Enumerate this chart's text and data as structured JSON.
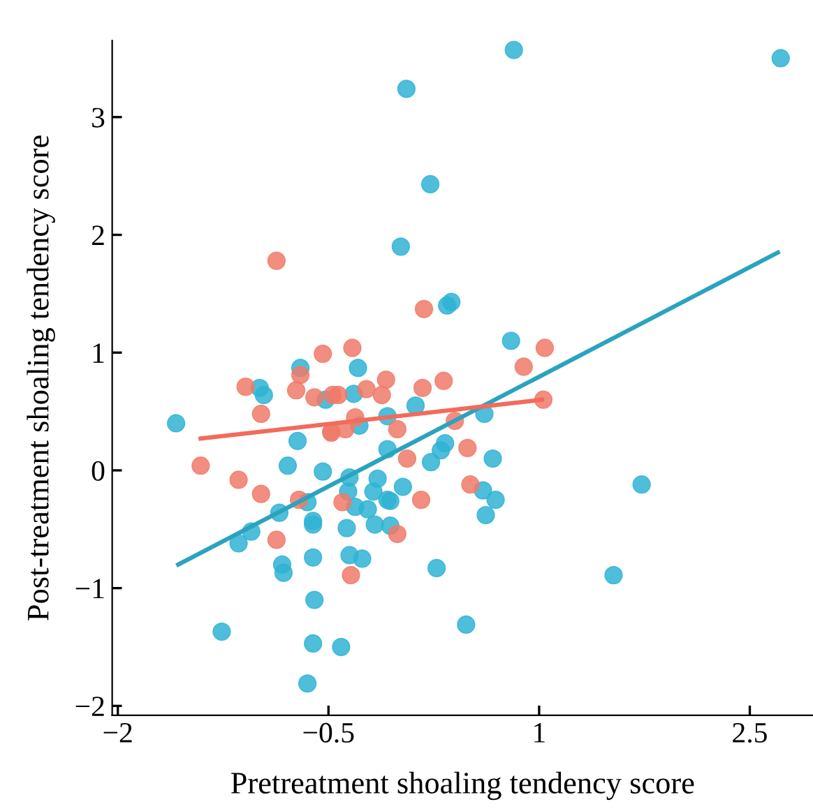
{
  "chart_data": {
    "type": "scatter",
    "xlabel": "Pretreatment shoaling tendency score",
    "ylabel": "Post-treatment shoaling tendency score",
    "xlim": [
      -2.04,
      2.95
    ],
    "ylim": [
      -2.08,
      3.65
    ],
    "xticks": [
      {
        "value": -2,
        "label": "−2"
      },
      {
        "value": -0.5,
        "label": "−0.5"
      },
      1,
      2.5
    ],
    "yticks": [
      {
        "value": -2,
        "label": "−2"
      },
      {
        "value": -1,
        "label": "−1"
      },
      0,
      1,
      2,
      3
    ],
    "grid": false,
    "series": [
      {
        "color": "#2fb3d3",
        "marker": "circle",
        "x": [
          -1.585,
          0.82,
          2.72,
          0.055,
          0.225,
          0.015,
          0.345,
          0.375,
          0.8,
          -0.7,
          -0.99,
          -0.96,
          -0.29,
          -0.32,
          -0.52,
          -0.28,
          -0.08,
          0.12,
          0.61,
          0.33,
          0.3,
          0.23,
          0.67,
          -0.72,
          -0.79,
          -0.54,
          -0.35,
          -0.15,
          -0.08,
          0.03,
          -0.18,
          -0.36,
          -0.08,
          -0.31,
          -0.22,
          0.6,
          0.69,
          -0.65,
          -0.85,
          0.62,
          -1.05,
          -1.14,
          -0.61,
          -0.61,
          -0.06,
          -0.17,
          -0.06,
          -0.37,
          -0.83,
          -0.82,
          -0.61,
          -0.35,
          -0.26,
          0.27,
          -0.6,
          -1.26,
          -0.61,
          -0.41,
          -0.65,
          0.48,
          1.53,
          1.73
        ],
        "values": [
          0.4,
          3.57,
          3.5,
          3.24,
          2.43,
          1.9,
          1.4,
          1.43,
          1.1,
          0.87,
          0.7,
          0.64,
          0.87,
          0.65,
          0.6,
          0.38,
          0.46,
          0.55,
          0.48,
          0.23,
          0.17,
          0.07,
          0.1,
          0.25,
          0.04,
          -0.01,
          -0.06,
          -0.07,
          0.18,
          -0.14,
          -0.18,
          -0.18,
          -0.25,
          -0.31,
          -0.33,
          -0.17,
          -0.25,
          -0.27,
          -0.36,
          -0.38,
          -0.52,
          -0.62,
          -0.43,
          -0.46,
          -0.26,
          -0.46,
          -0.47,
          -0.49,
          -0.8,
          -0.87,
          -0.74,
          -0.72,
          -0.75,
          -0.83,
          -1.1,
          -1.37,
          -1.47,
          -1.5,
          -1.81,
          -1.31,
          -0.89,
          -0.12
        ]
      },
      {
        "color": "#f07a68",
        "marker": "circle",
        "x": [
          -0.87,
          0.18,
          -0.54,
          -0.33,
          1.04,
          0.89,
          -0.7,
          -1.09,
          -0.73,
          -0.6,
          -0.47,
          -0.43,
          -0.23,
          -0.12,
          -0.09,
          0.17,
          0.32,
          1.03,
          -0.98,
          -0.48,
          -0.48,
          -0.38,
          -0.31,
          -0.01,
          0.4,
          0.49,
          0.06,
          -1.41,
          -1.14,
          -0.98,
          -0.71,
          -0.4,
          0.16,
          0.51,
          -0.87,
          -0.34,
          -0.01
        ],
        "values": [
          1.78,
          1.37,
          0.99,
          1.04,
          1.04,
          0.88,
          0.81,
          0.71,
          0.68,
          0.62,
          0.64,
          0.64,
          0.69,
          0.64,
          0.77,
          0.7,
          0.76,
          0.6,
          0.48,
          0.33,
          0.32,
          0.35,
          0.45,
          0.35,
          0.42,
          0.19,
          0.1,
          0.04,
          -0.08,
          -0.2,
          -0.25,
          -0.27,
          -0.25,
          -0.12,
          -0.59,
          -0.89,
          -0.54
        ]
      },
      {
        "type": "line",
        "marker": "none",
        "color": "#2aa3bf",
        "x": [
          -1.57,
          2.7
        ],
        "values": [
          -0.8,
          1.85
        ]
      },
      {
        "type": "line",
        "marker": "none",
        "color": "#f26b5b",
        "x": [
          -1.41,
          1.02
        ],
        "values": [
          0.27,
          0.6
        ]
      }
    ]
  }
}
